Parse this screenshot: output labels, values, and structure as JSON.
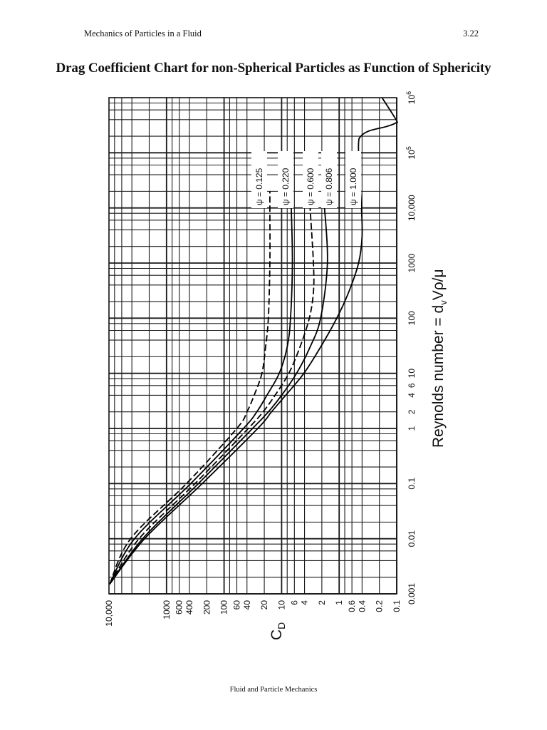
{
  "header": {
    "running_title": "Mechanics of Particles in a Fluid",
    "page_number": "3.22"
  },
  "page_title": "Drag Coefficient Chart for non-Spherical Particles as Function of Sphericity",
  "footer": "Fluid and Particle Mechanics",
  "chart_data": {
    "type": "line",
    "orientation": "rotated 90° counter-clockwise (x-axis runs bottom-to-top along the right edge, y-axis runs left-to-right along the bottom edge)",
    "title": "Drag Coefficient Chart for non-Spherical Particles as Function of Sphericity",
    "xlabel": "Reynolds number = d_v V ρ/μ",
    "ylabel": "C_D",
    "xscale": "log",
    "yscale": "log",
    "xlim": [
      0.001,
      1000000
    ],
    "ylim": [
      0.1,
      10000
    ],
    "x_tick_labels": [
      "0.001",
      "0.01",
      "0.1",
      "1",
      "2",
      "4",
      "6",
      "10",
      "100",
      "1000",
      "10,000",
      "10^5",
      "10^6"
    ],
    "x_tick_values": [
      0.001,
      0.01,
      0.1,
      1,
      2,
      4,
      6,
      10,
      100,
      1000,
      10000,
      100000,
      1000000
    ],
    "y_tick_labels": [
      "10,000",
      "1000",
      "600",
      "400",
      "200",
      "100",
      "60",
      "40",
      "20",
      "10",
      "6",
      "4",
      "2",
      "1",
      "0.6",
      "0.4",
      "0.2",
      "0.1"
    ],
    "y_tick_values": [
      10000,
      1000,
      600,
      400,
      200,
      100,
      60,
      40,
      20,
      10,
      6,
      4,
      2,
      1,
      0.6,
      0.4,
      0.2,
      0.1
    ],
    "grid": true,
    "legend_position": "inline labels near the upper end of each curve",
    "series": [
      {
        "name": "ψ = 0.125",
        "style": "dashed",
        "points": [
          [
            0.0015,
            20000
          ],
          [
            0.01,
            4200
          ],
          [
            0.1,
            450
          ],
          [
            1,
            60
          ],
          [
            2,
            40
          ],
          [
            4,
            30
          ],
          [
            10,
            22
          ],
          [
            30,
            19
          ],
          [
            100,
            17
          ],
          [
            1000,
            16
          ],
          [
            10000,
            16
          ],
          [
            20000,
            16
          ]
        ]
      },
      {
        "name": "ψ = 0.220",
        "style": "solid",
        "points": [
          [
            0.0015,
            17000
          ],
          [
            0.01,
            3600
          ],
          [
            0.1,
            380
          ],
          [
            1,
            46
          ],
          [
            2,
            27
          ],
          [
            4,
            18
          ],
          [
            10,
            11
          ],
          [
            30,
            8
          ],
          [
            100,
            7
          ],
          [
            1000,
            6.5
          ],
          [
            10000,
            6.8
          ],
          [
            20000,
            7
          ]
        ]
      },
      {
        "name": "ψ = 0.600",
        "style": "dashed",
        "points": [
          [
            0.0015,
            14000
          ],
          [
            0.01,
            3000
          ],
          [
            0.1,
            320
          ],
          [
            1,
            38
          ],
          [
            2,
            21
          ],
          [
            4,
            13
          ],
          [
            10,
            7.5
          ],
          [
            30,
            4.8
          ],
          [
            100,
            3.3
          ],
          [
            300,
            2.8
          ],
          [
            1000,
            2.8
          ],
          [
            10000,
            3.2
          ],
          [
            20000,
            3.3
          ]
        ]
      },
      {
        "name": "ψ = 0.806",
        "style": "solid",
        "points": [
          [
            0.0015,
            12000
          ],
          [
            0.01,
            2600
          ],
          [
            0.1,
            280
          ],
          [
            1,
            32
          ],
          [
            2,
            17
          ],
          [
            4,
            10
          ],
          [
            10,
            5.5
          ],
          [
            30,
            3.2
          ],
          [
            100,
            2.1
          ],
          [
            1000,
            1.6
          ],
          [
            10000,
            1.8
          ],
          [
            20000,
            2
          ]
        ]
      },
      {
        "name": "ψ = 1.000",
        "style": "solid",
        "points": [
          [
            0.0015,
            16000
          ],
          [
            0.01,
            2400
          ],
          [
            0.1,
            240
          ],
          [
            1,
            26
          ],
          [
            2,
            15
          ],
          [
            4,
            8.5
          ],
          [
            10,
            4.1
          ],
          [
            30,
            2.1
          ],
          [
            100,
            1.1
          ],
          [
            300,
            0.68
          ],
          [
            1000,
            0.46
          ],
          [
            3000,
            0.4
          ],
          [
            10000,
            0.41
          ],
          [
            50000,
            0.45
          ],
          [
            150000,
            0.46
          ],
          [
            200000,
            0.42
          ],
          [
            250000,
            0.3
          ],
          [
            300000,
            0.15
          ],
          [
            350000,
            0.1
          ],
          [
            400000,
            0.08
          ],
          [
            1000000,
            0.18
          ]
        ]
      }
    ]
  },
  "icons": {
    "psi_symbol": "ψ"
  }
}
